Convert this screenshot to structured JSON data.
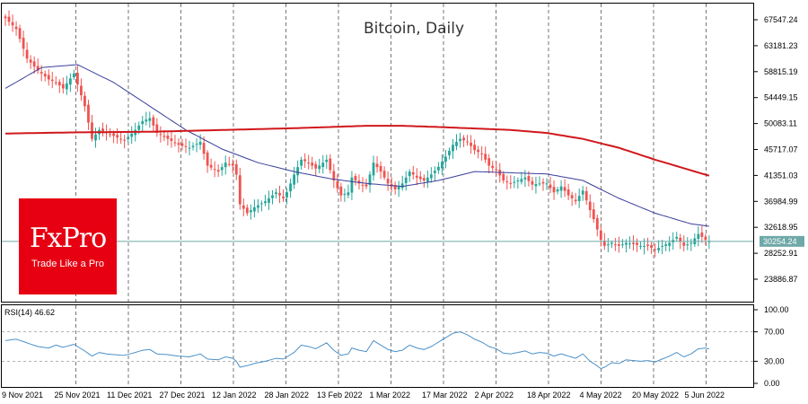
{
  "colors": {
    "bull": "#26a69a",
    "bear": "#ef5350",
    "ma_fast": "#3a3f9a",
    "ma_slow": "#d0181c",
    "rsi": "#4a90c8",
    "last_price_line": "#6fa8a8",
    "logo_bg": "#e60012"
  },
  "logo": {
    "brand": "FxPro",
    "tagline": "Trade Like a Pro"
  },
  "chart_data": {
    "type": "candlestick",
    "title": "Bitcoin, Daily",
    "price_ticks": [
      "67547.24",
      "63181.23",
      "58815.19",
      "54449.15",
      "50083.11",
      "45717.07",
      "41351.03",
      "36984.99",
      "32618.95",
      "28252.91",
      "23886.87"
    ],
    "last_price": 30254.24,
    "last_price_label": "30254.24",
    "ylim": [
      21300,
      70200
    ],
    "x_labels": [
      "9 Nov 2021",
      "25 Nov 2021",
      "11 Dec 2021",
      "27 Dec 2021",
      "12 Jan 2022",
      "28 Jan 2022",
      "13 Feb 2022",
      "1 Mar 2022",
      "17 Mar 2022",
      "2 Apr 2022",
      "18 Apr 2022",
      "4 May 2022",
      "20 May 2022",
      "5 Jun 2022"
    ],
    "close_anchors": [
      [
        0,
        67800
      ],
      [
        3,
        66000
      ],
      [
        6,
        61000
      ],
      [
        9,
        59000
      ],
      [
        12,
        57500
      ],
      [
        14,
        57000
      ],
      [
        16,
        56000
      ],
      [
        19,
        58500
      ],
      [
        22,
        53000
      ],
      [
        24,
        47500
      ],
      [
        26,
        49000
      ],
      [
        28,
        48500
      ],
      [
        30,
        48000
      ],
      [
        33,
        47200
      ],
      [
        36,
        49000
      ],
      [
        38,
        50500
      ],
      [
        40,
        51000
      ],
      [
        42,
        48500
      ],
      [
        45,
        47500
      ],
      [
        48,
        46500
      ],
      [
        51,
        46000
      ],
      [
        54,
        47000
      ],
      [
        56,
        43000
      ],
      [
        59,
        42000
      ],
      [
        61,
        43500
      ],
      [
        63,
        43000
      ],
      [
        64,
        41500
      ],
      [
        65,
        36500
      ],
      [
        67,
        35000
      ],
      [
        69,
        36000
      ],
      [
        72,
        37000
      ],
      [
        75,
        38500
      ],
      [
        77,
        37500
      ],
      [
        78,
        38500
      ],
      [
        80,
        41500
      ],
      [
        82,
        44000
      ],
      [
        84,
        43500
      ],
      [
        86,
        42500
      ],
      [
        89,
        44000
      ],
      [
        91,
        40500
      ],
      [
        93,
        38000
      ],
      [
        95,
        38500
      ],
      [
        96,
        41000
      ],
      [
        98,
        40000
      ],
      [
        100,
        39500
      ],
      [
        102,
        43500
      ],
      [
        104,
        42000
      ],
      [
        106,
        40000
      ],
      [
        108,
        39000
      ],
      [
        110,
        40000
      ],
      [
        112,
        42000
      ],
      [
        114,
        41000
      ],
      [
        116,
        40500
      ],
      [
        118,
        41500
      ],
      [
        120,
        42800
      ],
      [
        122,
        44500
      ],
      [
        124,
        46500
      ],
      [
        126,
        47500
      ],
      [
        128,
        47000
      ],
      [
        130,
        45600
      ],
      [
        132,
        45000
      ],
      [
        134,
        43000
      ],
      [
        136,
        42200
      ],
      [
        138,
        40500
      ],
      [
        140,
        40000
      ],
      [
        142,
        40500
      ],
      [
        144,
        41000
      ],
      [
        146,
        39800
      ],
      [
        148,
        40000
      ],
      [
        150,
        40000
      ],
      [
        152,
        38500
      ],
      [
        154,
        39500
      ],
      [
        156,
        38000
      ],
      [
        158,
        37000
      ],
      [
        160,
        38800
      ],
      [
        162,
        35500
      ],
      [
        163,
        34000
      ],
      [
        165,
        30500
      ],
      [
        166,
        29500
      ],
      [
        168,
        30000
      ],
      [
        170,
        29500
      ],
      [
        172,
        30000
      ],
      [
        174,
        29800
      ],
      [
        176,
        29500
      ],
      [
        178,
        29500
      ],
      [
        180,
        28800
      ],
      [
        182,
        29500
      ],
      [
        184,
        30000
      ],
      [
        186,
        31000
      ],
      [
        188,
        29500
      ],
      [
        190,
        30000
      ],
      [
        192,
        31500
      ],
      [
        194,
        30500
      ],
      [
        195,
        30254
      ]
    ],
    "ma_fast": [
      [
        0,
        56000
      ],
      [
        10,
        59500
      ],
      [
        20,
        60000
      ],
      [
        30,
        57000
      ],
      [
        40,
        53000
      ],
      [
        50,
        49000
      ],
      [
        60,
        45800
      ],
      [
        70,
        43500
      ],
      [
        80,
        42000
      ],
      [
        90,
        40800
      ],
      [
        100,
        40000
      ],
      [
        110,
        39500
      ],
      [
        120,
        40500
      ],
      [
        130,
        42000
      ],
      [
        140,
        41800
      ],
      [
        150,
        41600
      ],
      [
        160,
        40500
      ],
      [
        170,
        37500
      ],
      [
        180,
        35000
      ],
      [
        190,
        33200
      ],
      [
        195,
        32800
      ]
    ],
    "ma_slow": [
      [
        0,
        48400
      ],
      [
        20,
        48600
      ],
      [
        40,
        48700
      ],
      [
        60,
        49000
      ],
      [
        80,
        49300
      ],
      [
        100,
        49700
      ],
      [
        110,
        49700
      ],
      [
        120,
        49500
      ],
      [
        140,
        49000
      ],
      [
        150,
        48500
      ],
      [
        160,
        47500
      ],
      [
        170,
        46000
      ],
      [
        180,
        44000
      ],
      [
        195,
        41300
      ]
    ],
    "rsi": {
      "label": "RSI(14) 46.62",
      "ticks": [
        "100.00",
        "70.00",
        "30.00",
        "0.00"
      ],
      "levels": [
        30,
        70
      ],
      "values": [
        [
          0,
          58
        ],
        [
          3,
          60
        ],
        [
          6,
          55
        ],
        [
          9,
          50
        ],
        [
          12,
          48
        ],
        [
          14,
          52
        ],
        [
          16,
          49
        ],
        [
          19,
          53
        ],
        [
          22,
          44
        ],
        [
          24,
          37
        ],
        [
          26,
          42
        ],
        [
          28,
          40
        ],
        [
          30,
          39
        ],
        [
          33,
          38
        ],
        [
          36,
          42
        ],
        [
          38,
          45
        ],
        [
          40,
          46
        ],
        [
          42,
          40
        ],
        [
          45,
          39
        ],
        [
          48,
          37
        ],
        [
          51,
          36
        ],
        [
          54,
          40
        ],
        [
          56,
          33
        ],
        [
          59,
          32
        ],
        [
          61,
          36
        ],
        [
          63,
          34
        ],
        [
          64,
          30
        ],
        [
          65,
          22
        ],
        [
          67,
          24
        ],
        [
          69,
          27
        ],
        [
          72,
          30
        ],
        [
          75,
          34
        ],
        [
          77,
          33
        ],
        [
          78,
          36
        ],
        [
          80,
          42
        ],
        [
          82,
          52
        ],
        [
          84,
          50
        ],
        [
          86,
          47
        ],
        [
          89,
          55
        ],
        [
          91,
          45
        ],
        [
          93,
          38
        ],
        [
          95,
          40
        ],
        [
          96,
          48
        ],
        [
          98,
          45
        ],
        [
          100,
          43
        ],
        [
          102,
          58
        ],
        [
          104,
          52
        ],
        [
          106,
          46
        ],
        [
          108,
          43
        ],
        [
          110,
          45
        ],
        [
          112,
          52
        ],
        [
          114,
          48
        ],
        [
          116,
          46
        ],
        [
          118,
          50
        ],
        [
          120,
          56
        ],
        [
          122,
          62
        ],
        [
          124,
          68
        ],
        [
          126,
          70
        ],
        [
          128,
          66
        ],
        [
          130,
          60
        ],
        [
          132,
          56
        ],
        [
          134,
          50
        ],
        [
          136,
          47
        ],
        [
          138,
          41
        ],
        [
          140,
          40
        ],
        [
          142,
          42
        ],
        [
          144,
          44
        ],
        [
          146,
          40
        ],
        [
          148,
          42
        ],
        [
          150,
          41
        ],
        [
          152,
          37
        ],
        [
          154,
          40
        ],
        [
          156,
          37
        ],
        [
          158,
          34
        ],
        [
          160,
          40
        ],
        [
          162,
          30
        ],
        [
          163,
          27
        ],
        [
          165,
          20
        ],
        [
          166,
          22
        ],
        [
          168,
          28
        ],
        [
          170,
          27
        ],
        [
          172,
          32
        ],
        [
          174,
          31
        ],
        [
          176,
          30
        ],
        [
          178,
          31
        ],
        [
          180,
          29
        ],
        [
          182,
          33
        ],
        [
          184,
          37
        ],
        [
          186,
          42
        ],
        [
          188,
          36
        ],
        [
          190,
          40
        ],
        [
          192,
          47
        ],
        [
          194,
          48
        ],
        [
          195,
          46.62
        ]
      ]
    }
  }
}
